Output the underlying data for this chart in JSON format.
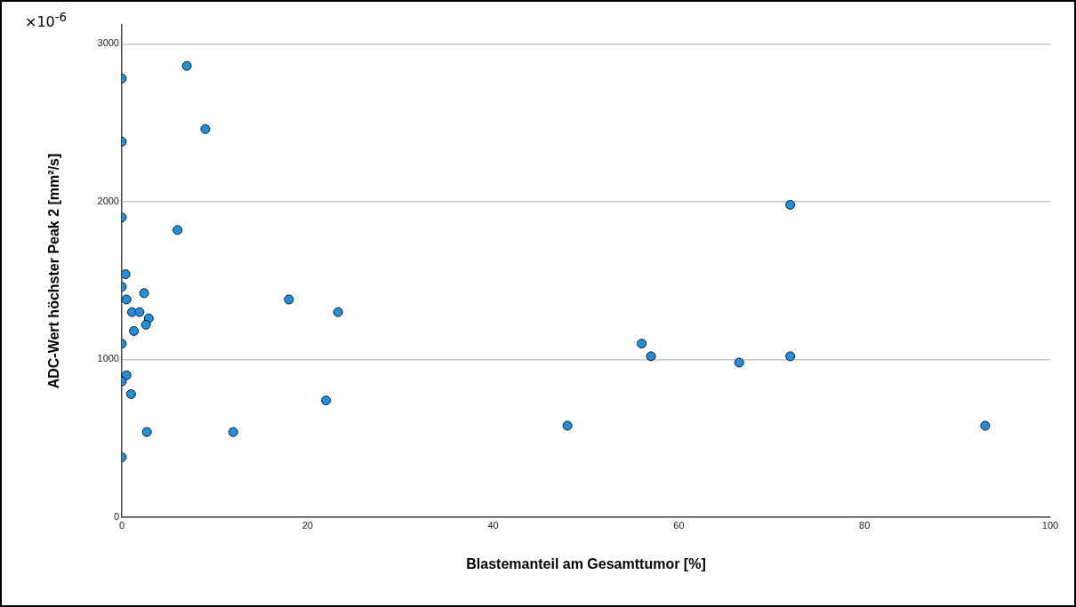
{
  "chart_data": {
    "type": "scatter",
    "xlabel": "Blastemanteil am Gesamttumor [%]",
    "ylabel": "ADC-Wert höchster Peak 2 [mm²/s]",
    "annotations": [
      "×10$^{-6}$"
    ],
    "x": [
      0,
      7,
      0,
      9,
      0,
      6,
      0.4,
      0,
      0.5,
      2.4,
      1.1,
      1.9,
      2.9,
      2.6,
      1.3,
      0,
      0.5,
      0,
      1,
      2.7,
      0,
      12,
      18,
      22,
      23.3,
      48,
      56,
      57,
      66.5,
      72,
      72,
      93
    ],
    "values": [
      2780,
      2860,
      2380,
      2460,
      1900,
      1820,
      1540,
      1460,
      1380,
      1420,
      1300,
      1300,
      1260,
      1220,
      1180,
      1100,
      900,
      860,
      780,
      540,
      380,
      540,
      1380,
      740,
      1300,
      580,
      1100,
      1020,
      980,
      1980,
      1020,
      580
    ],
    "color": "#1e90e0",
    "marker": "circle",
    "grid": "y",
    "legend": false,
    "xlim": [
      0,
      100
    ],
    "xticks": [
      0,
      20,
      40,
      60,
      80,
      100
    ],
    "ylim": [
      0,
      3120
    ],
    "yticks": [
      0,
      1000,
      2000,
      3000
    ]
  }
}
